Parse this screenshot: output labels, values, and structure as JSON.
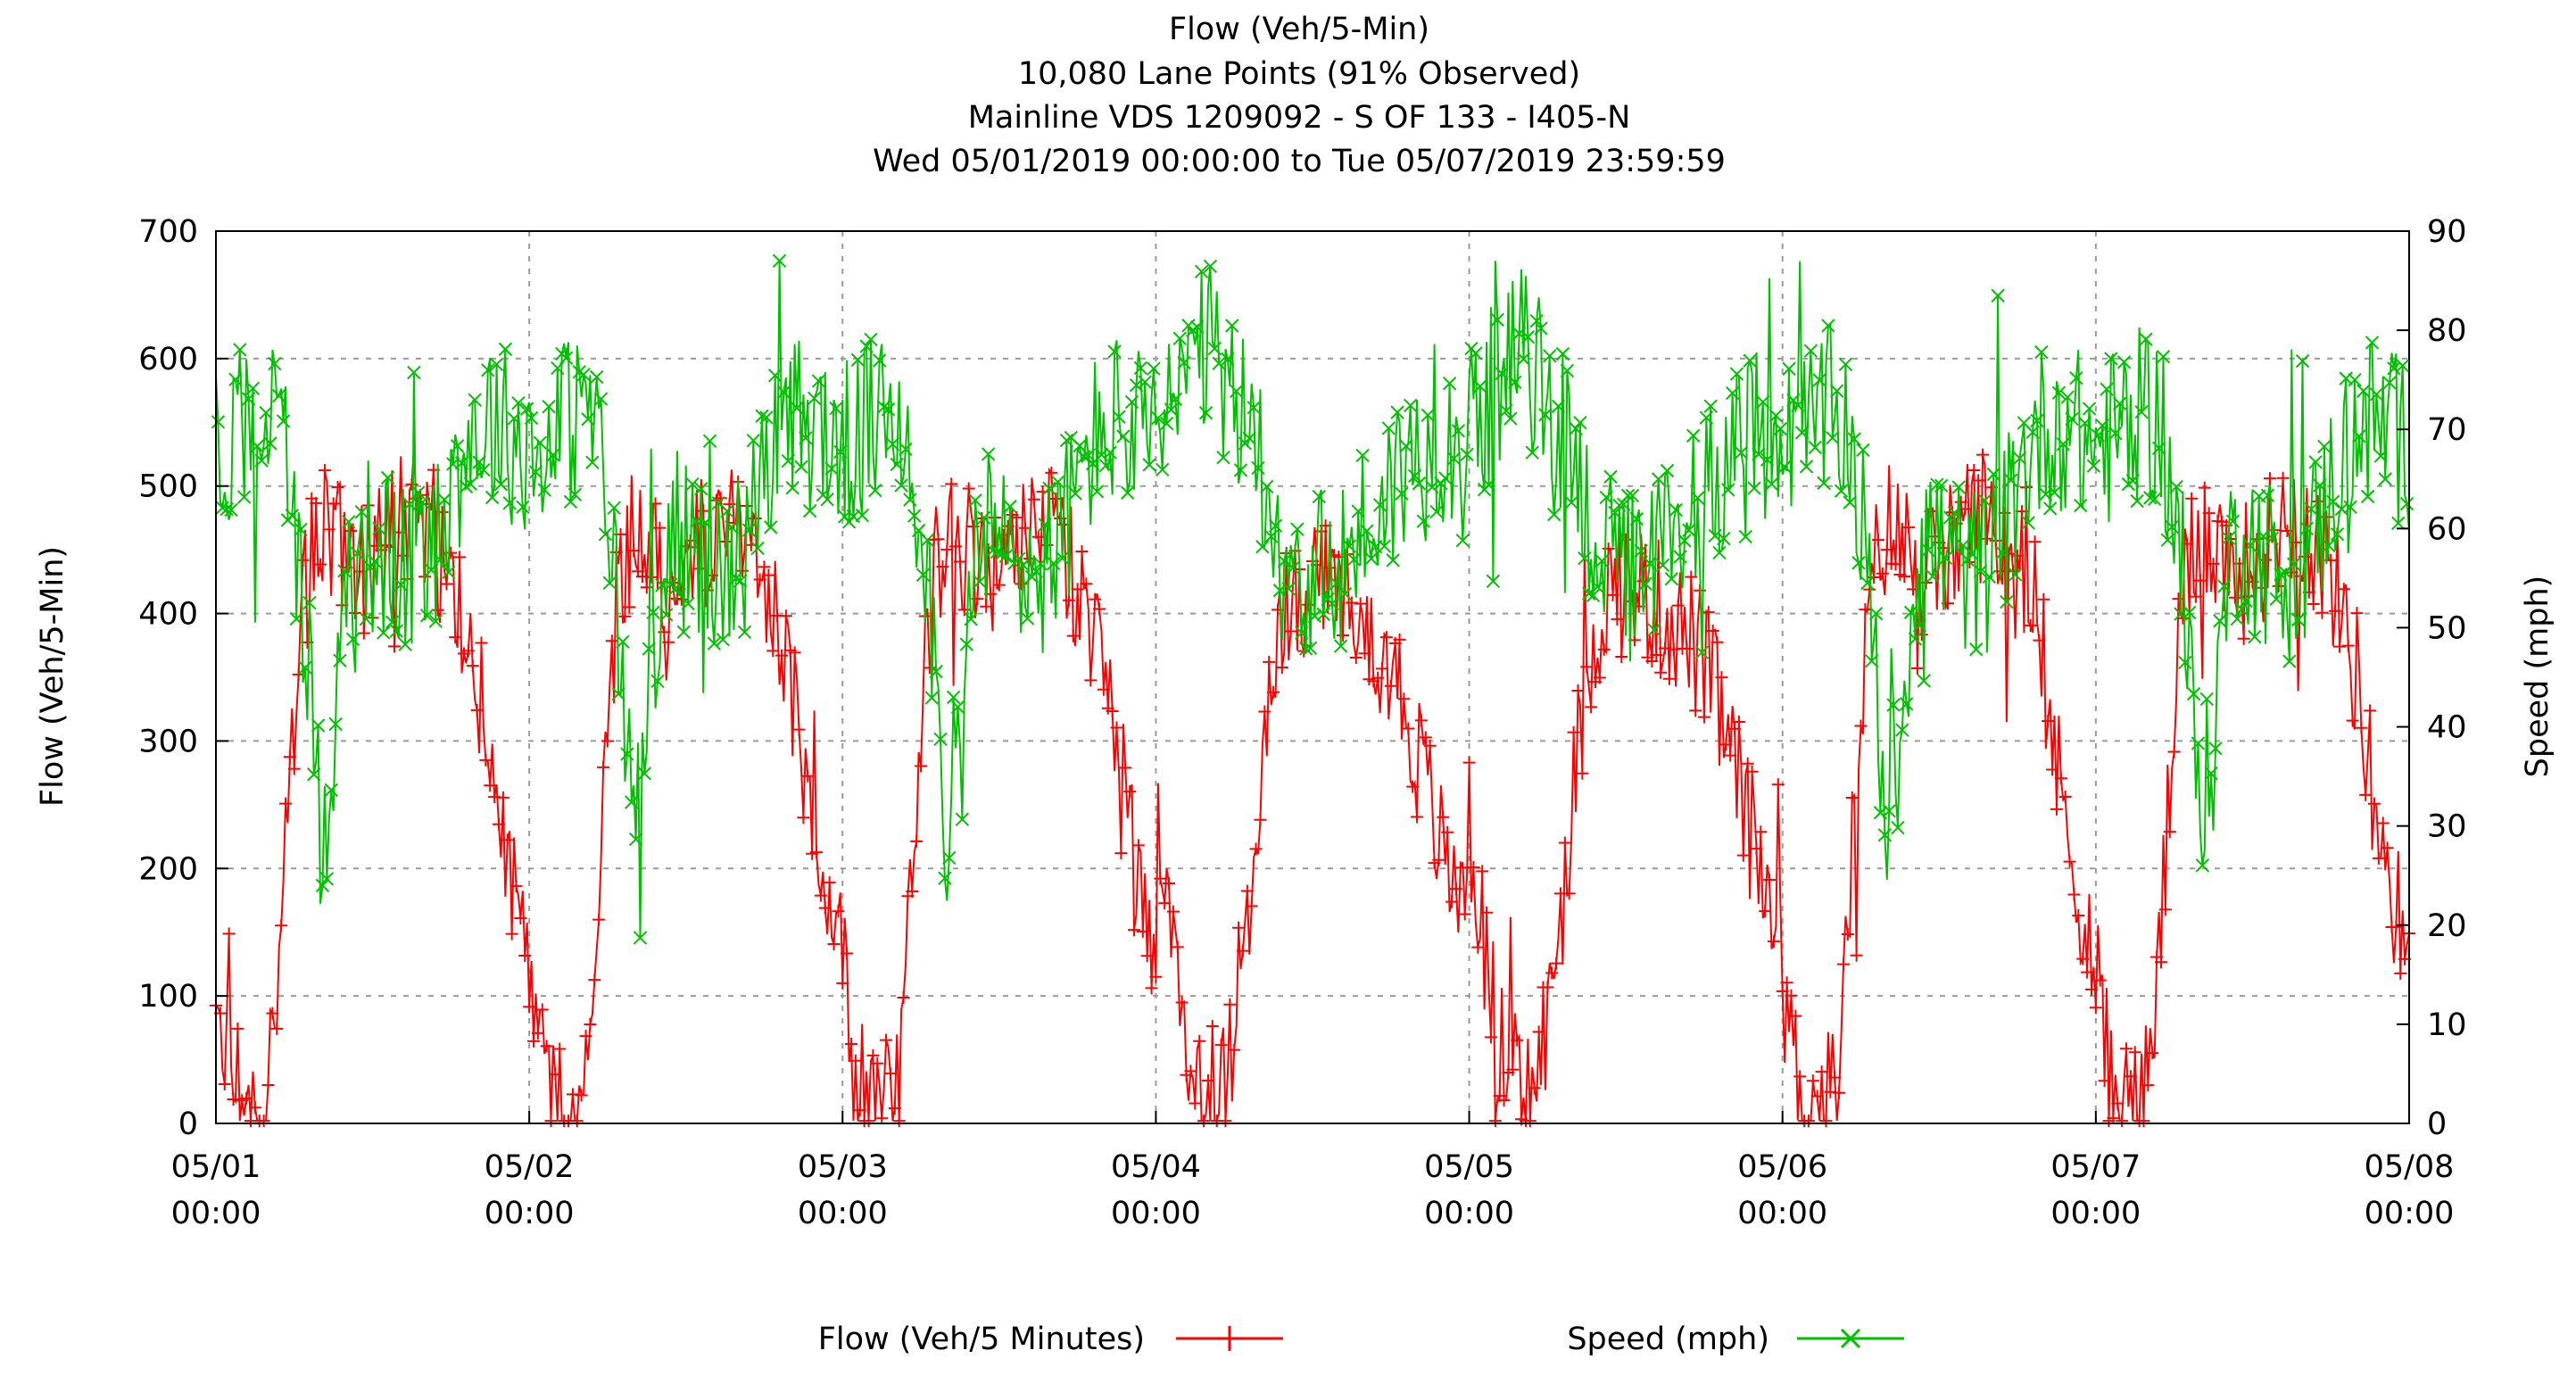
{
  "chart_data": {
    "type": "line",
    "title_lines": [
      "Flow (Veh/5-Min)",
      "10,080 Lane Points (91% Observed)",
      "Mainline VDS 1209092 - S OF 133 - I405-N",
      "Wed 05/01/2019 00:00:00 to Tue 05/07/2019 23:59:59"
    ],
    "ylabel_left": "Flow (Veh/5-Min)",
    "ylabel_right": "Speed (mph)",
    "xlim_hours": [
      0,
      168
    ],
    "ylim_left": [
      0,
      700
    ],
    "ylim_right": [
      0,
      90
    ],
    "yticks_left": [
      "0",
      "100",
      "200",
      "300",
      "400",
      "500",
      "600",
      "700"
    ],
    "yticks_right": [
      "0",
      "10",
      "20",
      "30",
      "40",
      "50",
      "60",
      "70",
      "80",
      "90"
    ],
    "xticks": [
      {
        "date": "05/01",
        "time": "00:00"
      },
      {
        "date": "05/02",
        "time": "00:00"
      },
      {
        "date": "05/03",
        "time": "00:00"
      },
      {
        "date": "05/04",
        "time": "00:00"
      },
      {
        "date": "05/05",
        "time": "00:00"
      },
      {
        "date": "05/06",
        "time": "00:00"
      },
      {
        "date": "05/07",
        "time": "00:00"
      },
      {
        "date": "05/08",
        "time": "00:00"
      }
    ],
    "grid": true,
    "legend_position": "bottom",
    "series": [
      {
        "name": "Flow (Veh/5 Minutes)",
        "axis": "left",
        "color": "#ff0000",
        "marker": "+",
        "profile_note": "daily profile, veh/5-min, hourly estimates",
        "hourly_weekday": [
          120,
          40,
          15,
          10,
          30,
          150,
          320,
          430,
          470,
          460,
          440,
          430,
          440,
          450,
          470,
          480,
          470,
          450,
          430,
          400,
          350,
          280,
          220,
          170
        ],
        "hourly_weekend": [
          230,
          150,
          80,
          40,
          20,
          30,
          80,
          160,
          260,
          350,
          400,
          420,
          420,
          420,
          410,
          400,
          390,
          380,
          360,
          330,
          290,
          250,
          210,
          180
        ]
      },
      {
        "name": "Speed (mph)",
        "axis": "right",
        "color": "#00c000",
        "marker": "x",
        "profile_note": "daily profile, mph, hourly estimates",
        "hourly_weekday": [
          68,
          69,
          70,
          71,
          72,
          70,
          62,
          48,
          30,
          38,
          55,
          60,
          58,
          57,
          56,
          55,
          57,
          60,
          64,
          68,
          70,
          71,
          70,
          69
        ],
        "hourly_weekend": [
          70,
          72,
          74,
          76,
          78,
          76,
          72,
          70,
          68,
          62,
          58,
          56,
          55,
          55,
          56,
          58,
          60,
          62,
          64,
          66,
          67,
          68,
          69,
          70
        ]
      }
    ]
  }
}
